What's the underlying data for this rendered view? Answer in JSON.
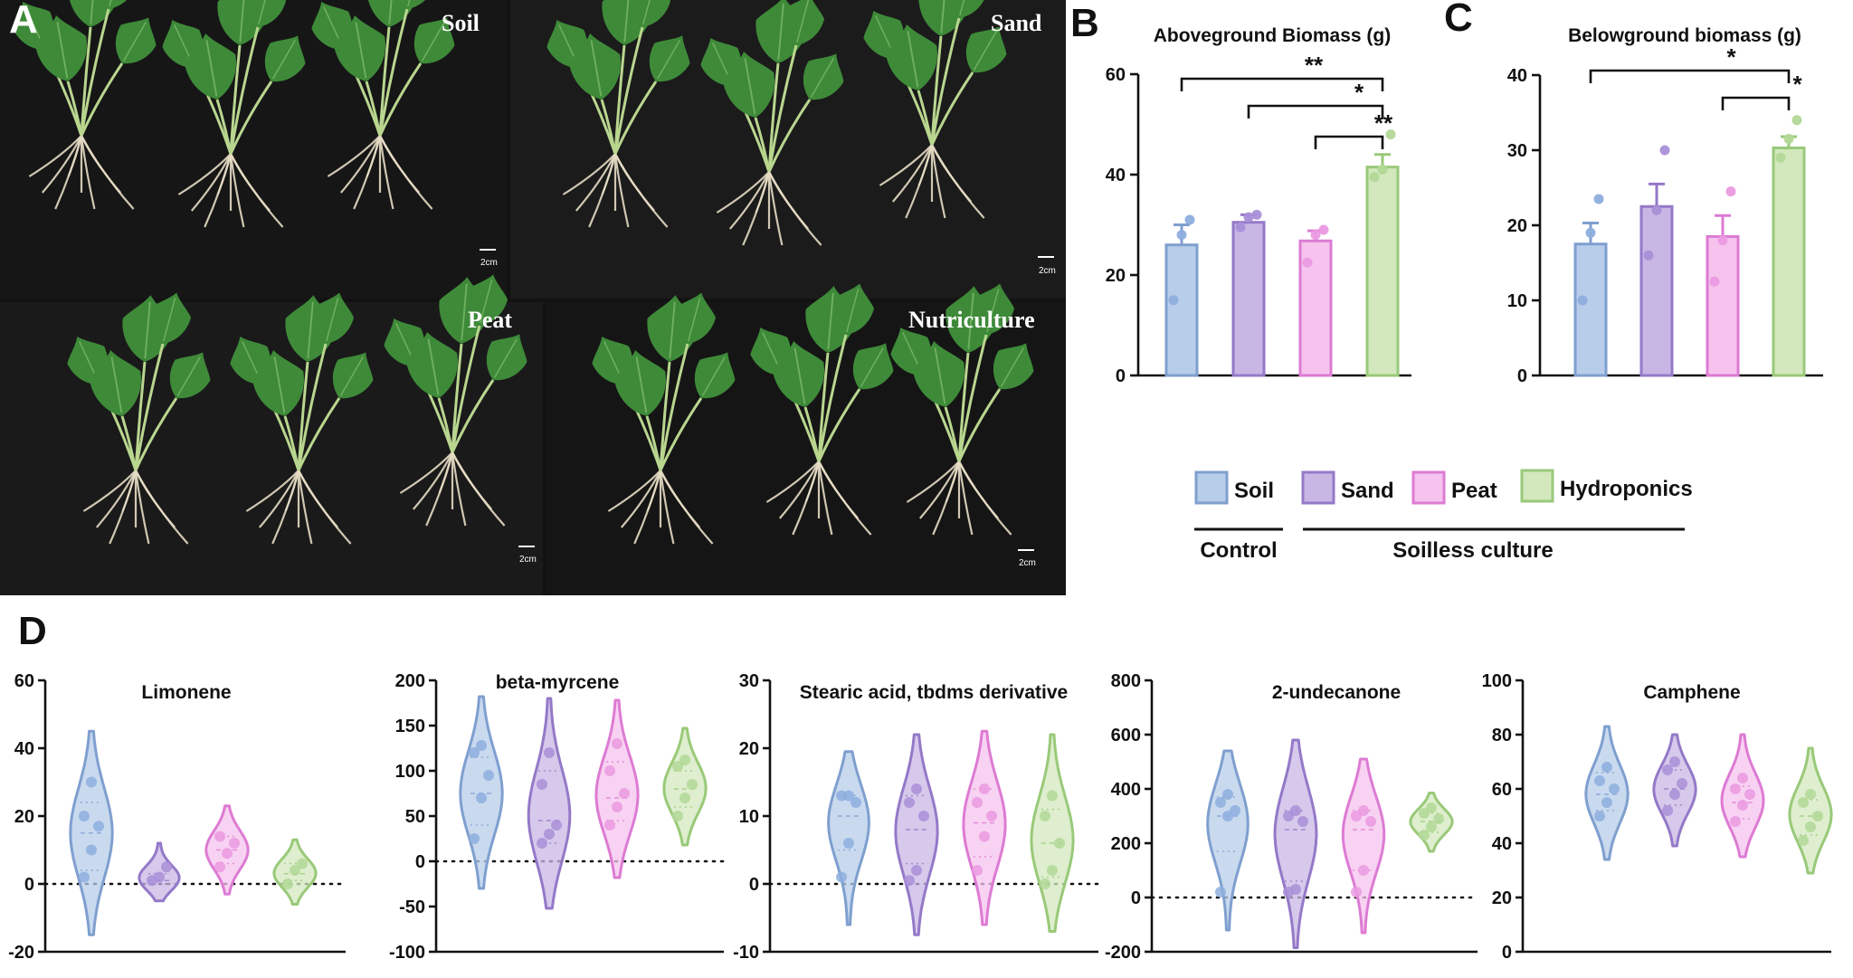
{
  "panels": {
    "A": "A",
    "B": "B",
    "C": "C",
    "D": "D"
  },
  "photo": {
    "labels": [
      "Soil",
      "Sand",
      "Peat",
      "Nutriculture"
    ],
    "scale_bar": "2cm"
  },
  "colors": {
    "Soil": {
      "fill": "#b7cdea",
      "stroke": "#7f9fcf",
      "dot": "#8eaede"
    },
    "Sand": {
      "fill": "#c8b7e4",
      "stroke": "#9479c8",
      "dot": "#a98fd8"
    },
    "Peat": {
      "fill": "#f5c3ee",
      "stroke": "#dd7bd3",
      "dot": "#ea9ae0"
    },
    "Hydroponics": {
      "fill": "#d3e8bd",
      "stroke": "#99c979",
      "dot": "#b2d896"
    }
  },
  "legend": {
    "items": [
      "Soil",
      "Sand",
      "Peat",
      "Hydroponics"
    ],
    "group_control": "Control",
    "group_soilless": "Soilless culture"
  },
  "chart_data": [
    {
      "panel": "B",
      "type": "bar",
      "title": "Aboveground Biomass (g)",
      "categories": [
        "Soil",
        "Sand",
        "Peat",
        "Hydroponics"
      ],
      "values": [
        26,
        30.5,
        26.8,
        41.5
      ],
      "errors": [
        4,
        1.5,
        2,
        2.5
      ],
      "points": [
        [
          15,
          28,
          31
        ],
        [
          29.5,
          31.5,
          32
        ],
        [
          22.5,
          28,
          29
        ],
        [
          39.5,
          41,
          48
        ]
      ],
      "ylim": [
        0,
        60
      ],
      "yticks": [
        0,
        20,
        40,
        60
      ],
      "significance": [
        {
          "from": 0,
          "to": 3,
          "label": "**"
        },
        {
          "from": 1,
          "to": 3,
          "label": "*"
        },
        {
          "from": 2,
          "to": 3,
          "label": "**"
        }
      ]
    },
    {
      "panel": "C",
      "type": "bar",
      "title": "Belowground biomass (g)",
      "categories": [
        "Soil",
        "Sand",
        "Peat",
        "Hydroponics"
      ],
      "values": [
        17.5,
        22.5,
        18.5,
        30.3
      ],
      "errors": [
        2.8,
        3,
        2.8,
        1.5
      ],
      "points": [
        [
          10,
          19,
          23.5
        ],
        [
          16,
          22,
          30
        ],
        [
          12.5,
          18,
          24.5
        ],
        [
          29,
          31.5,
          34
        ]
      ],
      "ylim": [
        0,
        40
      ],
      "yticks": [
        0,
        10,
        20,
        30,
        40
      ],
      "significance": [
        {
          "from": 0,
          "to": 3,
          "label": "*"
        },
        {
          "from": 2,
          "to": 3,
          "label": "*"
        }
      ]
    },
    {
      "panel": "D",
      "type": "violin",
      "title": "Limonene",
      "categories": [
        "Soil",
        "Sand",
        "Peat",
        "Hydroponics"
      ],
      "ylim": [
        -20,
        60
      ],
      "yticks": [
        -20,
        0,
        20,
        40,
        60
      ],
      "series": [
        {
          "name": "Soil",
          "min": -15,
          "max": 45,
          "median": 15,
          "q1": 4,
          "q3": 24,
          "points": [
            2,
            10,
            17,
            20,
            30
          ]
        },
        {
          "name": "Sand",
          "min": -5,
          "max": 12,
          "median": 1,
          "q1": 0,
          "q3": 3,
          "points": [
            1,
            2,
            5
          ]
        },
        {
          "name": "Peat",
          "min": -3,
          "max": 23,
          "median": 10,
          "q1": 6,
          "q3": 14,
          "points": [
            5,
            9,
            12,
            14
          ]
        },
        {
          "name": "Hydroponics",
          "min": -6,
          "max": 13,
          "median": 3,
          "q1": 1,
          "q3": 6,
          "points": [
            0,
            4,
            6
          ]
        }
      ]
    },
    {
      "panel": "D",
      "type": "violin",
      "title": "beta-myrcene",
      "categories": [
        "Soil",
        "Sand",
        "Peat",
        "Hydroponics"
      ],
      "ylim": [
        -100,
        200
      ],
      "yticks": [
        -100,
        -50,
        0,
        50,
        100,
        150,
        200
      ],
      "series": [
        {
          "name": "Soil",
          "min": -30,
          "max": 182,
          "median": 75,
          "q1": 40,
          "q3": 115,
          "points": [
            25,
            70,
            95,
            120,
            128
          ]
        },
        {
          "name": "Sand",
          "min": -52,
          "max": 180,
          "median": 45,
          "q1": 20,
          "q3": 100,
          "points": [
            20,
            30,
            40,
            85,
            120
          ]
        },
        {
          "name": "Peat",
          "min": -18,
          "max": 178,
          "median": 70,
          "q1": 45,
          "q3": 110,
          "points": [
            40,
            60,
            75,
            100,
            130
          ]
        },
        {
          "name": "Hydroponics",
          "min": 18,
          "max": 147,
          "median": 80,
          "q1": 60,
          "q3": 100,
          "points": [
            50,
            70,
            85,
            105,
            112
          ]
        }
      ]
    },
    {
      "panel": "D",
      "type": "violin",
      "title": "Stearic acid, tbdms derivative",
      "categories": [
        "Soil",
        "Sand",
        "Peat",
        "Hydroponics"
      ],
      "ylim": [
        -10,
        30
      ],
      "yticks": [
        -10,
        0,
        10,
        20,
        30
      ],
      "series": [
        {
          "name": "Soil",
          "min": -6,
          "max": 19.5,
          "median": 10,
          "q1": 5,
          "q3": 13,
          "points": [
            1,
            6,
            12,
            13,
            13
          ]
        },
        {
          "name": "Sand",
          "min": -7.5,
          "max": 22,
          "median": 8,
          "q1": 3,
          "q3": 13,
          "points": [
            0.5,
            2,
            10,
            12,
            14
          ]
        },
        {
          "name": "Peat",
          "min": -6,
          "max": 22.5,
          "median": 9,
          "q1": 4,
          "q3": 14,
          "points": [
            2,
            7,
            10,
            12,
            14
          ]
        },
        {
          "name": "Hydroponics",
          "min": -7,
          "max": 22,
          "median": 6,
          "q1": 1,
          "q3": 11,
          "points": [
            0,
            2,
            6,
            10,
            13
          ]
        }
      ]
    },
    {
      "panel": "D",
      "type": "violin",
      "title": "2-undecanone",
      "categories": [
        "Soil",
        "Sand",
        "Peat",
        "Hydroponics"
      ],
      "ylim": [
        -200,
        800
      ],
      "yticks": [
        -200,
        0,
        200,
        400,
        600,
        800
      ],
      "series": [
        {
          "name": "Soil",
          "min": -120,
          "max": 540,
          "median": 300,
          "q1": 170,
          "q3": 370,
          "points": [
            20,
            300,
            320,
            350,
            380
          ]
        },
        {
          "name": "Sand",
          "min": -185,
          "max": 580,
          "median": 250,
          "q1": 60,
          "q3": 320,
          "points": [
            20,
            30,
            280,
            300,
            320
          ]
        },
        {
          "name": "Peat",
          "min": -130,
          "max": 510,
          "median": 250,
          "q1": 100,
          "q3": 320,
          "points": [
            20,
            100,
            280,
            300,
            320
          ]
        },
        {
          "name": "Hydroponics",
          "min": 170,
          "max": 385,
          "median": 280,
          "q1": 240,
          "q3": 310,
          "points": [
            230,
            260,
            290,
            310,
            330
          ]
        }
      ]
    },
    {
      "panel": "D",
      "type": "violin",
      "title": "Camphene",
      "categories": [
        "Soil",
        "Sand",
        "Peat",
        "Hydroponics"
      ],
      "ylim": [
        0,
        100
      ],
      "yticks": [
        0,
        20,
        40,
        60,
        80,
        100
      ],
      "series": [
        {
          "name": "Soil",
          "min": 34,
          "max": 83,
          "median": 58,
          "q1": 52,
          "q3": 66,
          "points": [
            50,
            55,
            60,
            63,
            68
          ]
        },
        {
          "name": "Sand",
          "min": 39,
          "max": 80,
          "median": 60,
          "q1": 54,
          "q3": 67,
          "points": [
            52,
            58,
            62,
            67,
            70
          ]
        },
        {
          "name": "Peat",
          "min": 35,
          "max": 80,
          "median": 55,
          "q1": 49,
          "q3": 61,
          "points": [
            48,
            54,
            58,
            60,
            64
          ]
        },
        {
          "name": "Hydroponics",
          "min": 29,
          "max": 75,
          "median": 50,
          "q1": 43,
          "q3": 56,
          "points": [
            41,
            46,
            50,
            55,
            58
          ]
        }
      ]
    }
  ]
}
